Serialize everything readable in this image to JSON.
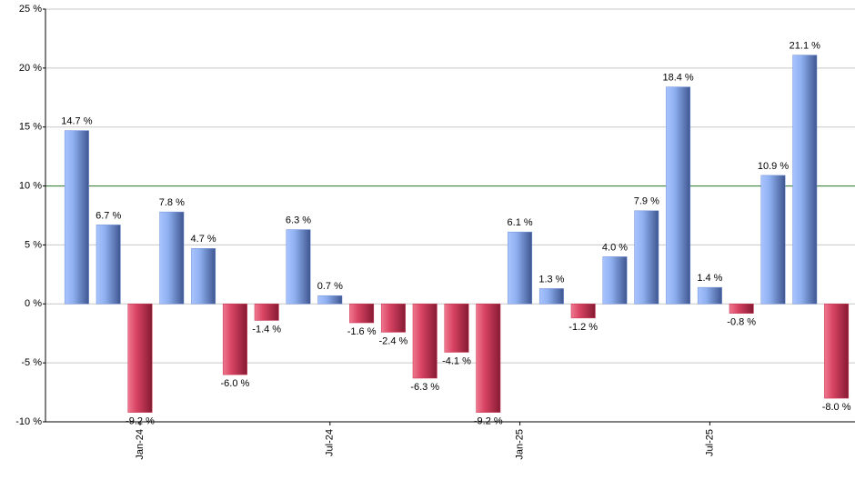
{
  "chart_data": {
    "type": "bar",
    "categories": [
      null,
      null,
      "Jan-24",
      null,
      null,
      null,
      null,
      null,
      "Jul-24",
      null,
      null,
      null,
      null,
      null,
      "Jan-25",
      null,
      null,
      null,
      null,
      null,
      "Jul-25",
      null,
      null,
      null,
      null
    ],
    "values": [
      14.7,
      6.7,
      -9.2,
      7.8,
      4.7,
      -6.0,
      -1.4,
      6.3,
      0.7,
      -1.6,
      -2.4,
      -6.3,
      -4.1,
      -9.2,
      6.1,
      1.3,
      -1.2,
      4.0,
      7.9,
      18.4,
      1.4,
      -0.8,
      10.9,
      21.1,
      -8.0
    ],
    "value_labels": [
      "14.7 %",
      "6.7 %",
      "-9.2 %",
      "7.8 %",
      "4.7 %",
      "-6.0 %",
      "-1.4 %",
      "6.3 %",
      "0.7 %",
      "-1.6 %",
      "-2.4 %",
      "-6.3 %",
      "-4.1 %",
      "-9.2 %",
      "6.1 %",
      "1.3 %",
      "-1.2 %",
      "4.0 %",
      "7.9 %",
      "18.4 %",
      "1.4 %",
      "-0.8 %",
      "10.9 %",
      "21.1 %",
      "-8.0 %"
    ],
    "positive_color": "#6f8fd6",
    "negative_color": "#c8324f",
    "ylim": [
      -10,
      25
    ],
    "yticks": [
      {
        "value": -10,
        "label": "-10 %"
      },
      {
        "value": -5,
        "label": "-5 %"
      },
      {
        "value": 0,
        "label": "0 %"
      },
      {
        "value": 5,
        "label": "5 %"
      },
      {
        "value": 10,
        "label": "10 %"
      },
      {
        "value": 15,
        "label": "15 %"
      },
      {
        "value": 20,
        "label": "20 %"
      },
      {
        "value": 25,
        "label": "25 %"
      }
    ],
    "grid": true,
    "reference_line": {
      "value": 10,
      "color": "#2e7d32"
    }
  }
}
